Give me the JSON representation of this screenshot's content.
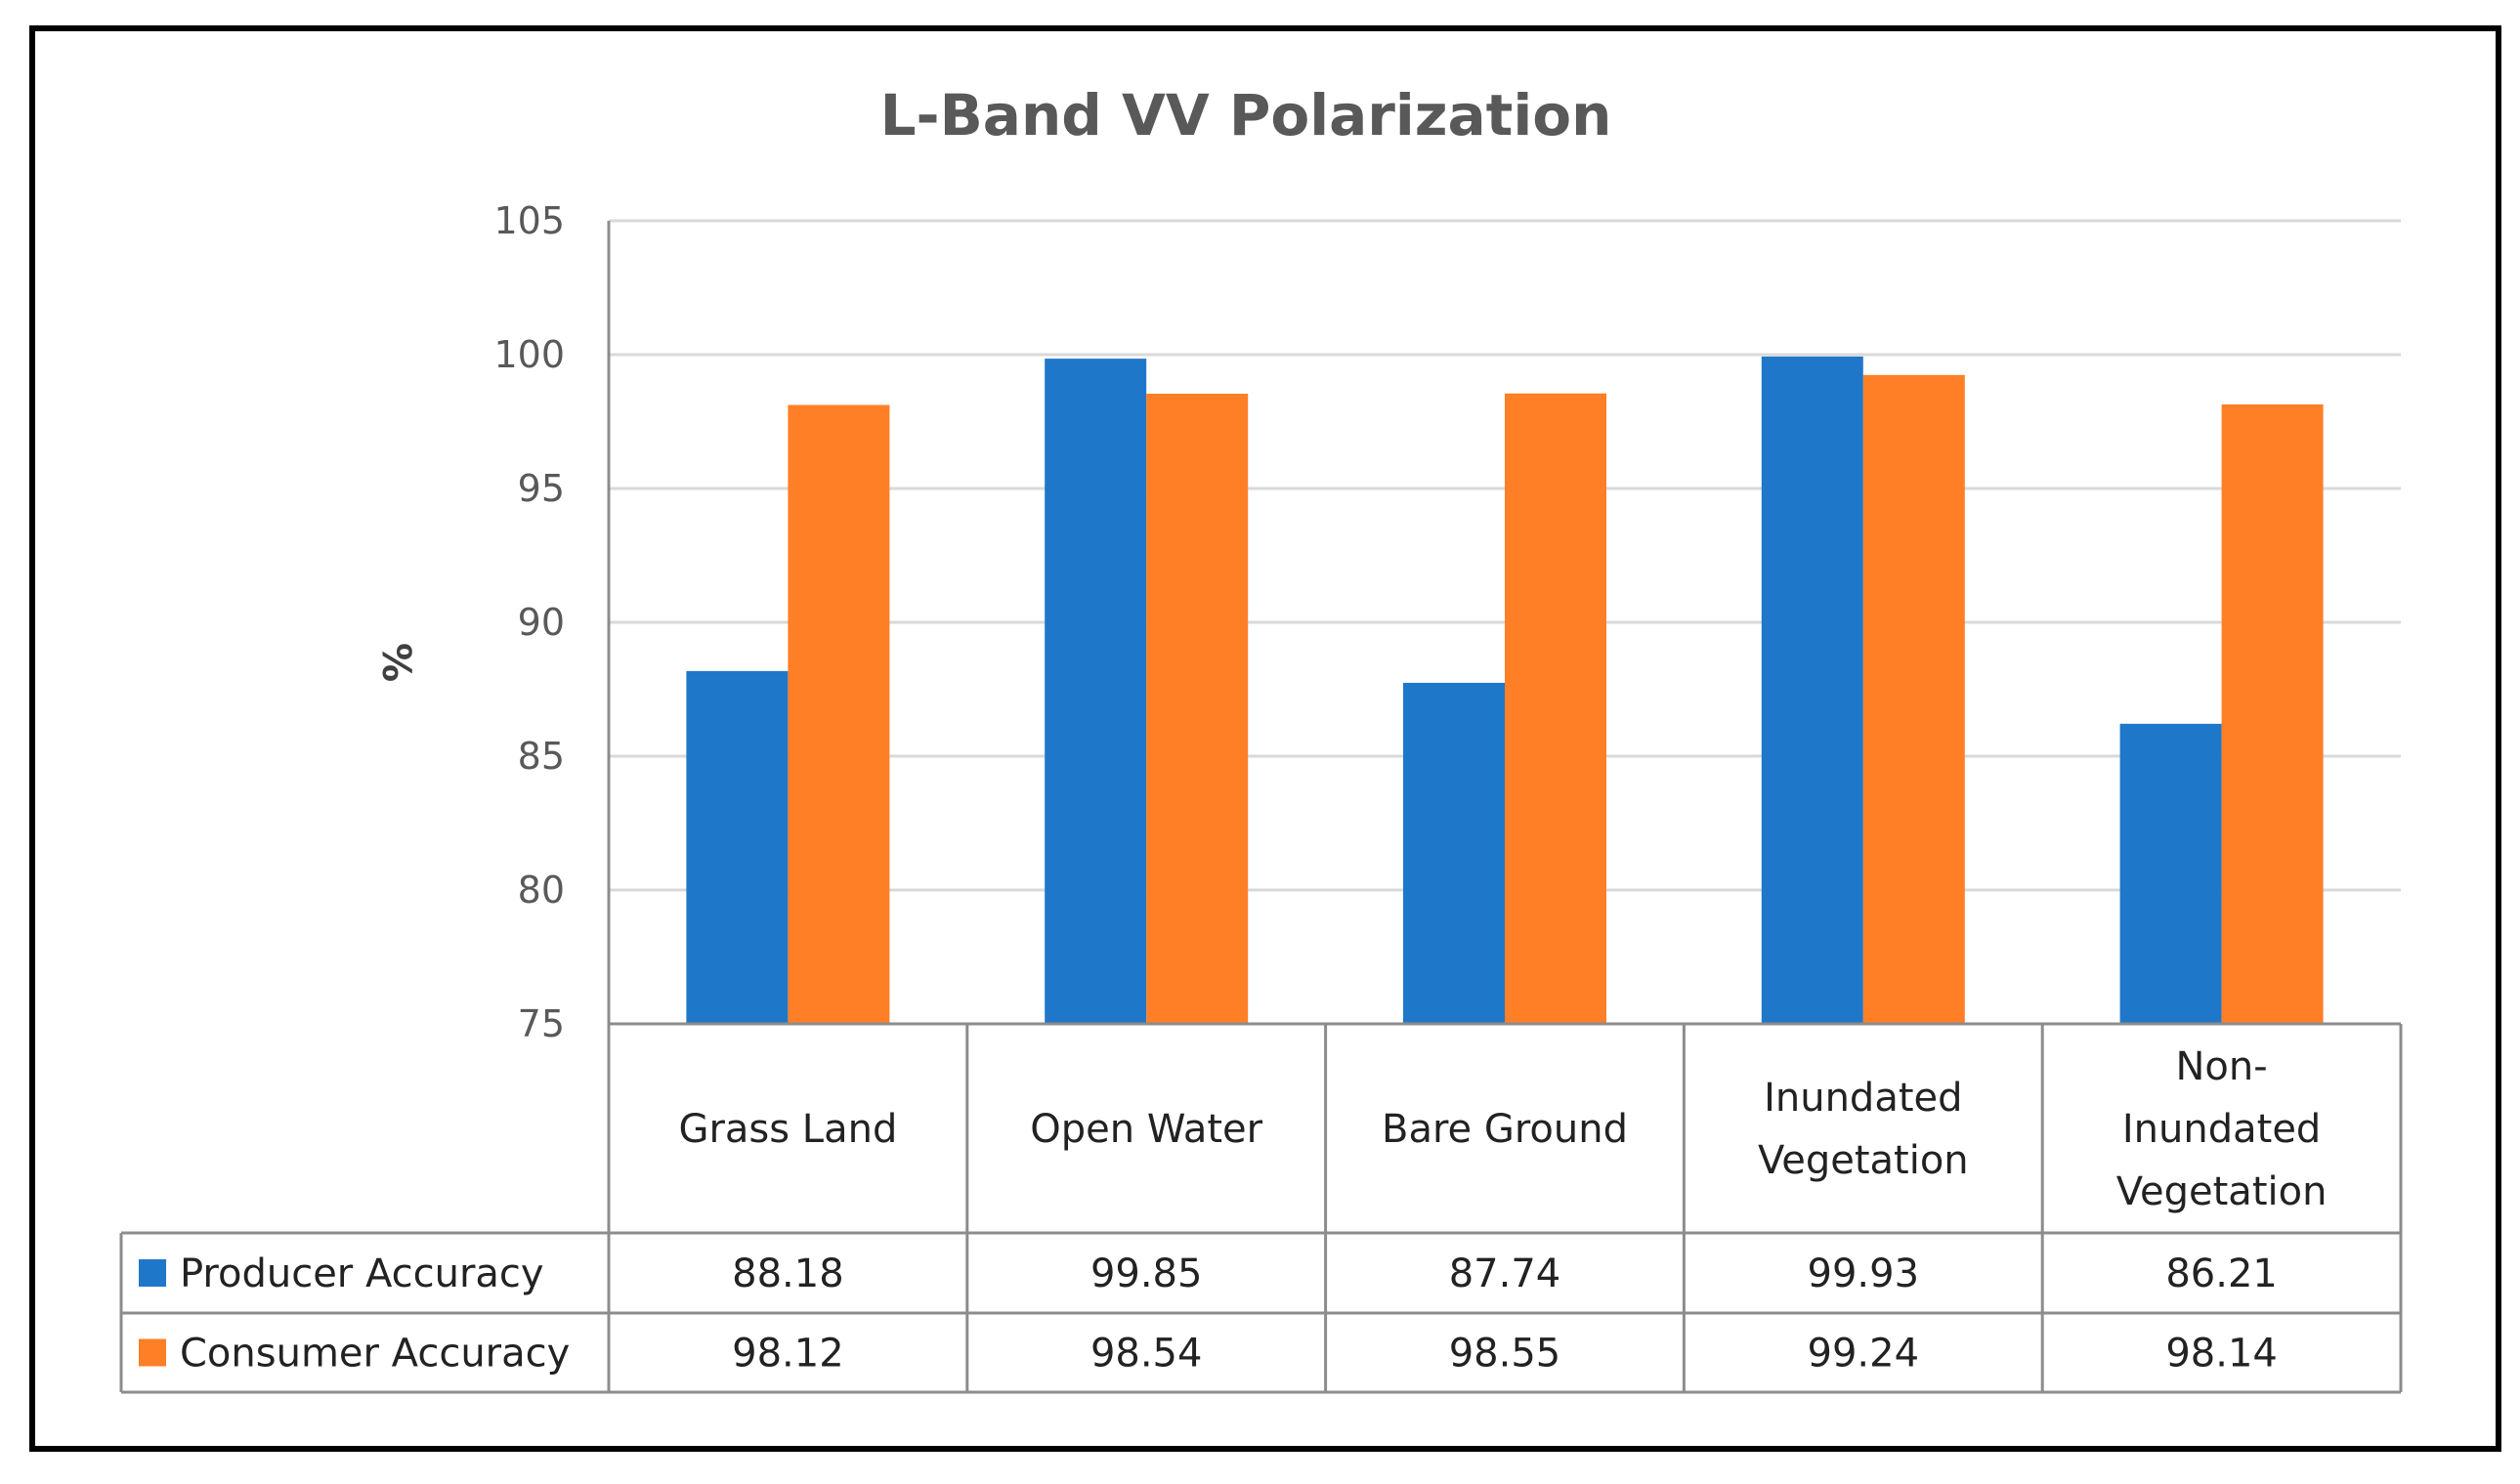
{
  "chart_data": {
    "type": "bar",
    "title": "L-Band VV Polarization",
    "ylabel": "%",
    "xlabel": "",
    "ylim": [
      75,
      105
    ],
    "yticks": [
      105,
      100,
      95,
      90,
      85,
      80,
      75
    ],
    "grid": true,
    "categories": [
      [
        "Grass Land"
      ],
      [
        "Open Water"
      ],
      [
        "Bare Ground"
      ],
      [
        "Inundated",
        "Vegetation"
      ],
      [
        "Non-",
        "Inundated",
        "Vegetation"
      ]
    ],
    "series": [
      {
        "name": "Producer Accuracy",
        "color": "#1f77c9",
        "values": [
          88.18,
          99.85,
          87.74,
          99.93,
          86.21
        ],
        "labels": [
          "88.18",
          "99.85",
          "87.74",
          "99.93",
          "86.21"
        ]
      },
      {
        "name": "Consumer Accuracy",
        "color": "#ff7f27",
        "values": [
          98.12,
          98.54,
          98.55,
          99.24,
          98.14
        ],
        "labels": [
          "98.12",
          "98.54",
          "98.55",
          "99.24",
          "98.14"
        ]
      }
    ]
  }
}
